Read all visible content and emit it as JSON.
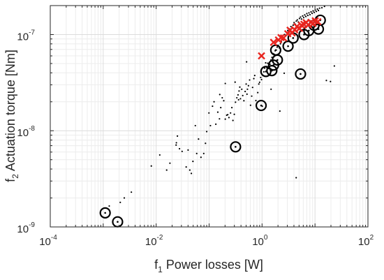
{
  "chart_data": {
    "type": "scatter",
    "xscale": "log",
    "yscale": "log",
    "xlim": [
      0.0001,
      100
    ],
    "ylim": [
      1e-09,
      2e-07
    ],
    "grid": true,
    "minor_grid": true,
    "xlabel": {
      "prefix": "f",
      "subscript": "1",
      "text": " Power losses [W]"
    },
    "ylabel": {
      "prefix": "f",
      "subscript": "2",
      "text": " Actuation torque [Nm]"
    },
    "x_ticks": [
      {
        "value": 0.0001,
        "base": "10",
        "exp": "-4"
      },
      {
        "value": 0.01,
        "base": "10",
        "exp": "-2"
      },
      {
        "value": 1,
        "base": "10",
        "exp": "0"
      },
      {
        "value": 100,
        "base": "10",
        "exp": "2"
      }
    ],
    "y_ticks": [
      {
        "value": 1e-09,
        "base": "10",
        "exp": "-9"
      },
      {
        "value": 1e-08,
        "base": "10",
        "exp": "-8"
      },
      {
        "value": 1e-07,
        "base": "10",
        "exp": "-7"
      }
    ],
    "colors": {
      "dots": "#000000",
      "circles": "#000000",
      "crosses": "#e8251f",
      "grid": "#e0e0e0"
    },
    "series": [
      {
        "marker": "dot",
        "points": [
          [
            0.0013,
            1.65e-09
          ],
          [
            0.0021,
            1.8e-09
          ],
          [
            0.0025,
            2e-09
          ],
          [
            0.0034,
            2.3e-09
          ],
          [
            0.0081,
            4.3e-09
          ],
          [
            0.0117,
            5.6e-09
          ],
          [
            0.0158,
            3.9e-09
          ],
          [
            0.0182,
            4.6e-09
          ],
          [
            0.0238,
            7.1e-09
          ],
          [
            0.0241,
            7.5e-09
          ],
          [
            0.0252,
            8.8e-09
          ],
          [
            0.0276,
            6.5e-09
          ],
          [
            0.0309,
            6.1e-09
          ],
          [
            0.0369,
            4.2e-09
          ],
          [
            0.0401,
            6.3e-09
          ],
          [
            0.0432,
            3.9e-09
          ],
          [
            0.0462,
            3.6e-09
          ],
          [
            0.0495,
            4.8e-09
          ],
          [
            0.0549,
            1.13e-08
          ],
          [
            0.0583,
            5.8e-09
          ],
          [
            0.0632,
            8.2e-09
          ],
          [
            0.0702,
            5.3e-09
          ],
          [
            0.0792,
            5.8e-09
          ],
          [
            0.0854,
            7.4e-09
          ],
          [
            0.0901,
            9.8e-09
          ],
          [
            0.0992,
            1.53e-08
          ],
          [
            0.106,
            1.13e-08
          ],
          [
            0.116,
            1.8e-08
          ],
          [
            0.124,
            2e-08
          ],
          [
            0.134,
            1.17e-08
          ],
          [
            0.146,
            1.56e-08
          ],
          [
            0.157,
            1.33e-08
          ],
          [
            0.166,
            1.74e-08
          ],
          [
            0.177,
            2.2e-08
          ],
          [
            0.189,
            2.05e-08
          ],
          [
            0.202,
            1.32e-08
          ],
          [
            0.215,
            1.45e-08
          ],
          [
            0.225,
            1.47e-08
          ],
          [
            0.237,
            1.37e-08
          ],
          [
            0.254,
            1.53e-08
          ],
          [
            0.269,
            1.74e-08
          ],
          [
            0.282,
            1.28e-08
          ],
          [
            0.299,
            1.48e-08
          ],
          [
            0.315,
            1.98e-08
          ],
          [
            0.334,
            2.2e-08
          ],
          [
            0.352,
            2.36e-08
          ],
          [
            0.368,
            2.59e-08
          ],
          [
            0.391,
            2.15e-08
          ],
          [
            0.414,
            2.7e-08
          ],
          [
            0.432,
            2.32e-08
          ],
          [
            0.454,
            2.05e-08
          ],
          [
            0.479,
            2.56e-08
          ],
          [
            0.501,
            3.06e-08
          ],
          [
            0.53,
            2.7e-08
          ],
          [
            0.553,
            2.94e-08
          ],
          [
            0.582,
            3.37e-08
          ],
          [
            0.606,
            1.84e-08
          ],
          [
            0.638,
            2.29e-08
          ],
          [
            0.662,
            2.82e-08
          ],
          [
            0.699,
            3.48e-08
          ],
          [
            0.727,
            3.75e-08
          ],
          [
            0.765,
            2.06e-08
          ],
          [
            0.803,
            1.71e-08
          ],
          [
            0.83,
            2.49e-08
          ],
          [
            0.869,
            3.06e-08
          ],
          [
            0.899,
            3.19e-08
          ],
          [
            0.943,
            3.58e-08
          ],
          [
            0.977,
            3.4e-08
          ],
          [
            1.03,
            3.78e-08
          ],
          [
            1.08,
            4.1e-08
          ],
          [
            1.12,
            4.47e-08
          ],
          [
            1.17,
            5.08e-08
          ],
          [
            1.23,
            4.55e-08
          ],
          [
            1.28,
            5.03e-08
          ],
          [
            1.34,
            4.43e-08
          ],
          [
            1.41,
            4.91e-08
          ],
          [
            1.47,
            5.43e-08
          ],
          [
            1.54,
            5.78e-08
          ],
          [
            1.61,
            6.34e-08
          ],
          [
            1.69,
            6.25e-08
          ],
          [
            1.77,
            6.77e-08
          ],
          [
            1.85,
            6.9e-08
          ],
          [
            1.93,
            7.4e-08
          ],
          [
            2.02,
            7.71e-08
          ],
          [
            2.13,
            7.25e-08
          ],
          [
            2.22,
            8.01e-08
          ],
          [
            2.32,
            8.38e-08
          ],
          [
            2.43,
            8.85e-08
          ],
          [
            2.55,
            9.32e-08
          ],
          [
            2.67,
            1e-07
          ],
          [
            2.8,
            9.71e-08
          ],
          [
            2.93,
            1.04e-07
          ],
          [
            3.06,
            1.1e-07
          ],
          [
            3.21,
            1.05e-07
          ],
          [
            3.35,
            1.14e-07
          ],
          [
            3.51,
            1.21e-07
          ],
          [
            3.68,
            1.16e-07
          ],
          [
            3.86,
            1.25e-07
          ],
          [
            4.03,
            1.33e-07
          ],
          [
            4.24,
            1.28e-07
          ],
          [
            4.43,
            1.38e-07
          ],
          [
            4.63,
            1.42e-07
          ],
          [
            4.85,
            1.35e-07
          ],
          [
            5.09,
            1.47e-07
          ],
          [
            5.33,
            1.52e-07
          ],
          [
            5.56,
            1.45e-07
          ],
          [
            5.84,
            1.56e-07
          ],
          [
            6.12,
            1.5e-07
          ],
          [
            6.4,
            1.6e-07
          ],
          [
            6.7,
            1.54e-07
          ],
          [
            7.01,
            1.65e-07
          ],
          [
            7.33,
            1.58e-07
          ],
          [
            7.67,
            1.68e-07
          ],
          [
            8.04,
            1.61e-07
          ],
          [
            8.42,
            1.72e-07
          ],
          [
            8.82,
            1.66e-07
          ],
          [
            9.22,
            1.76e-07
          ],
          [
            9.64,
            1.7e-07
          ],
          [
            10.1,
            1.8e-07
          ],
          [
            10.6,
            1.74e-07
          ],
          [
            11.1,
            1.84e-07
          ],
          [
            11.6,
            1.78e-07
          ],
          [
            12.2,
            1.88e-07
          ],
          [
            13.5,
            1.9e-07
          ],
          [
            15.1,
            1.96e-07
          ],
          [
            16.4,
            3.33e-08
          ],
          [
            19.6,
            3.25e-08
          ],
          [
            23.2,
            4.71e-08
          ],
          [
            4.41,
            3.25e-09
          ],
          [
            2.62,
            3.96e-08
          ],
          [
            1.01,
            1.8e-08
          ],
          [
            0.52,
            2.4e-08
          ],
          [
            0.36,
            2.1e-08
          ],
          [
            2.17,
            1.6e-08
          ],
          [
            1.48,
            2.7e-08
          ],
          [
            0.51,
            5.2e-08
          ],
          [
            0.38,
            2.84e-08
          ],
          [
            0.31,
            3.2e-08
          ],
          [
            0.202,
            3.1e-08
          ],
          [
            0.159,
            2.38e-08
          ]
        ]
      },
      {
        "marker": "circle",
        "points": [
          [
            0.00109,
            1.4e-09
          ],
          [
            0.00187,
            1.13e-09
          ],
          [
            0.316,
            6.8e-09
          ],
          [
            0.962,
            1.83e-08
          ],
          [
            1.18,
            4.13e-08
          ],
          [
            1.53,
            4.22e-08
          ],
          [
            1.65,
            4.81e-08
          ],
          [
            1.81,
            6.89e-08
          ],
          [
            1.95,
            5.44e-08
          ],
          [
            3.1,
            7.57e-08
          ],
          [
            3.86,
            9.2e-08
          ],
          [
            5.33,
            3.89e-08
          ],
          [
            6.21,
            1e-07
          ],
          [
            7.64,
            1.1e-07
          ],
          [
            9.61,
            1.25e-07
          ],
          [
            11.6,
            1.14e-07
          ],
          [
            12.6,
            1.41e-07
          ]
        ]
      },
      {
        "marker": "cross",
        "points": [
          [
            0.976,
            6e-08
          ],
          [
            1.65,
            8.3e-08
          ],
          [
            2.04,
            8.79e-08
          ],
          [
            2.28,
            9.3e-08
          ],
          [
            2.55,
            9.2e-08
          ],
          [
            3.06,
            1.02e-07
          ],
          [
            3.38,
            1.11e-07
          ],
          [
            3.69,
            1.04e-07
          ],
          [
            4.13,
            1.12e-07
          ],
          [
            4.55,
            1.21e-07
          ],
          [
            5.08,
            1.16e-07
          ],
          [
            5.55,
            1.25e-07
          ],
          [
            6.17,
            1.28e-07
          ],
          [
            6.81,
            1.33e-07
          ],
          [
            7.49,
            1.26e-07
          ],
          [
            8.37,
            1.34e-07
          ],
          [
            9.17,
            1.3e-07
          ],
          [
            10.1,
            1.39e-07
          ],
          [
            11.3,
            1.36e-07
          ]
        ]
      }
    ]
  }
}
